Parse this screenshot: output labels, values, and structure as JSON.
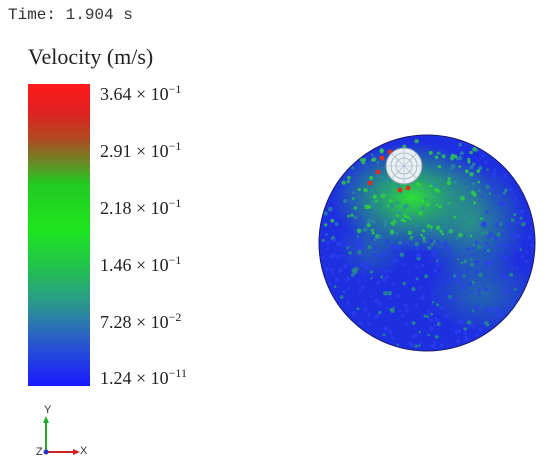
{
  "time_label": "Time: 1.904 s",
  "legend": {
    "title": "Velocity (m/s)",
    "ticks": [
      {
        "mant": "3.64 × 10",
        "exp": "−1"
      },
      {
        "mant": "2.91 × 10",
        "exp": "−1"
      },
      {
        "mant": "2.18 × 10",
        "exp": "−1"
      },
      {
        "mant": "1.46 × 10",
        "exp": "−1"
      },
      {
        "mant": "7.28 × 10",
        "exp": "−2"
      },
      {
        "mant": "1.24 × 10",
        "exp": "−11"
      }
    ],
    "color_max": "#ff1a1a",
    "color_mid": "#1ee61e",
    "color_min": "#1a1aff"
  },
  "axes": {
    "y": "Y",
    "x": "X",
    "z": "Z"
  }
}
